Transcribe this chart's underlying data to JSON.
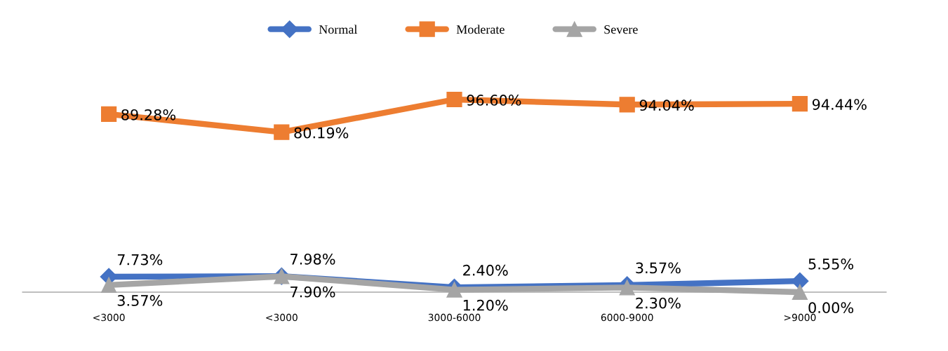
{
  "chart_data": {
    "type": "line",
    "categories": [
      "<3000",
      "<3000",
      "3000-6000",
      "6000-9000",
      ">9000"
    ],
    "series": [
      {
        "name": "Normal",
        "color": "#4472c4",
        "marker": "diamond",
        "values": [
          7.73,
          7.98,
          2.4,
          3.57,
          5.55
        ],
        "value_labels": [
          "7.73%",
          "7.98%",
          "2.40%",
          "3.57%",
          "5.55%"
        ]
      },
      {
        "name": "Moderate",
        "color": "#ed7d31",
        "marker": "square",
        "values": [
          89.28,
          80.19,
          96.6,
          94.04,
          94.44
        ],
        "value_labels": [
          "89.28%",
          "80.19%",
          "96.60%",
          "94.04%",
          "94.44%"
        ]
      },
      {
        "name": "Severe",
        "color": "#a5a5a5",
        "marker": "triangle",
        "values": [
          3.57,
          7.9,
          1.2,
          2.3,
          0.0
        ],
        "value_labels": [
          "3.57%",
          "7.90%",
          "1.20%",
          "2.30%",
          "0.00%"
        ]
      }
    ],
    "grid": false,
    "legend": "top",
    "line_style": "solid"
  }
}
